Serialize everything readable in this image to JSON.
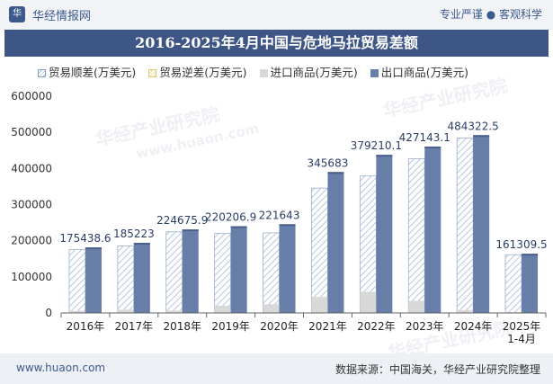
{
  "header": {
    "brand": "华经情报网",
    "logo_text": "华",
    "slogan": "专业严谨 ● 客观科学"
  },
  "chart_title": "2016-2025年4月中国与危地马拉贸易差额",
  "footer": {
    "site": "www.huaon.com",
    "source": "数据来源：中国海关，华经产业研究院整理"
  },
  "watermarks": {
    "text": "华经产业研究院",
    "url": "www.huaon.com"
  },
  "colors": {
    "surplus": "#aebfd6",
    "deficit": "#f0d98a",
    "import": "#d8d8d8",
    "export": "#677ea8",
    "title_bg": "#3e5686"
  },
  "chart_data": {
    "type": "bar",
    "categories": [
      "2016年",
      "2017年",
      "2018年",
      "2019年",
      "2020年",
      "2021年",
      "2022年",
      "2023年",
      "2024年",
      "2025年\n1-4月"
    ],
    "series": [
      {
        "name": "贸易顺差(万美元)",
        "values": [
          175438.6,
          185223,
          224675.9,
          220206.9,
          221643,
          345683,
          379210.1,
          427143.1,
          484322.5,
          161309.5
        ]
      },
      {
        "name": "贸易逆差(万美元)",
        "values": [
          0,
          0,
          0,
          0,
          0,
          0,
          0,
          0,
          0,
          0
        ]
      },
      {
        "name": "进口商品(万美元)",
        "values": [
          6000,
          9000,
          6500,
          20000,
          24000,
          44500,
          58500,
          33500,
          8000,
          2500
        ]
      },
      {
        "name": "出口商品(万美元)",
        "values": [
          181438.6,
          194223,
          231175.9,
          240206.9,
          245643,
          390183,
          437710.1,
          460643.1,
          492322.5,
          163809.5
        ]
      }
    ],
    "data_labels": [
      "175438.6",
      "185223",
      "224675.9",
      "220206.9",
      "221643",
      "345683",
      "379210.1",
      "427143.1",
      "484322.5",
      "161309.5"
    ],
    "y_ticks": [
      "0",
      "100000",
      "200000",
      "300000",
      "400000",
      "500000",
      "600000"
    ],
    "ylim": [
      0,
      600000
    ],
    "legend_position": "top",
    "grid": false
  }
}
